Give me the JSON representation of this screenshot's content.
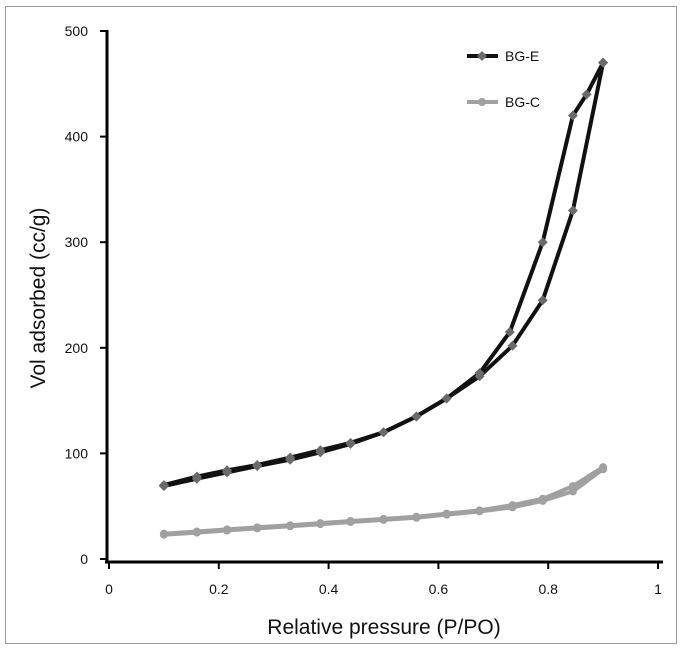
{
  "chart_data": {
    "type": "line",
    "title": "",
    "xlabel": "Relative pressure (P/PO)",
    "ylabel": "Vol adsorbed (cc/g)",
    "xlim": [
      0,
      1
    ],
    "ylim": [
      0,
      500
    ],
    "x_ticks": [
      0,
      0.2,
      0.4,
      0.6,
      0.8,
      1
    ],
    "x_tick_labels": [
      "0",
      "0.2",
      "0.4",
      "0.6",
      "0.8",
      "1"
    ],
    "y_ticks": [
      0,
      100,
      200,
      300,
      400,
      500
    ],
    "y_tick_labels": [
      "0",
      "100",
      "200",
      "300",
      "400",
      "500"
    ],
    "grid": false,
    "legend_position": "top-right",
    "series": [
      {
        "name": "BG-E",
        "color": "#111111",
        "marker_color": "#6a6a6a",
        "marker": "diamond",
        "adsorption": {
          "x": [
            0.1,
            0.16,
            0.215,
            0.27,
            0.33,
            0.385,
            0.44,
            0.5,
            0.56,
            0.615,
            0.675,
            0.735,
            0.79,
            0.845,
            0.9
          ],
          "y": [
            69,
            76,
            82,
            88,
            94,
            101,
            109,
            120,
            135,
            152,
            173,
            202,
            245,
            330,
            470
          ]
        },
        "desorption": {
          "x": [
            0.9,
            0.87,
            0.845,
            0.79,
            0.73,
            0.675,
            0.615,
            0.56,
            0.5,
            0.44,
            0.385,
            0.33,
            0.27,
            0.215,
            0.16,
            0.1
          ],
          "y": [
            470,
            440,
            420,
            300,
            215,
            176,
            152,
            135,
            120,
            110,
            103,
            96,
            89,
            84,
            78,
            70
          ]
        }
      },
      {
        "name": "BG-C",
        "color": "#a0a0a0",
        "marker_color": "#a0a0a0",
        "marker": "circle",
        "adsorption": {
          "x": [
            0.1,
            0.16,
            0.215,
            0.27,
            0.33,
            0.385,
            0.44,
            0.5,
            0.56,
            0.615,
            0.675,
            0.735,
            0.79,
            0.845,
            0.9
          ],
          "y": [
            23,
            25,
            27,
            29,
            31,
            33,
            35,
            37,
            39,
            42,
            45,
            49,
            55,
            64,
            85
          ]
        },
        "desorption": {
          "x": [
            0.9,
            0.845,
            0.79,
            0.735,
            0.675,
            0.615,
            0.56,
            0.5,
            0.44,
            0.385,
            0.33,
            0.27,
            0.215,
            0.16,
            0.1
          ],
          "y": [
            87,
            69,
            57,
            51,
            46,
            43,
            40,
            38,
            36,
            34,
            32,
            30,
            28,
            26,
            24
          ]
        }
      }
    ]
  }
}
